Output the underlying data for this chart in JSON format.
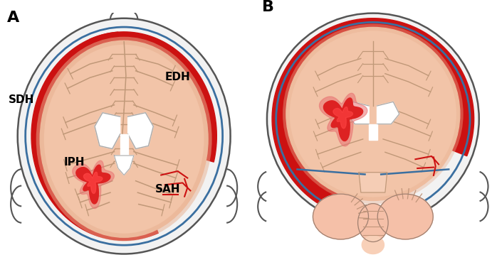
{
  "background_color": "#ffffff",
  "label_A": "A",
  "label_B": "B",
  "label_SDH": "SDH",
  "label_EDH": "EDH",
  "label_IPH": "IPH",
  "label_SAH": "SAH",
  "skull_color": "#f2f2f2",
  "skull_edge_color": "#555555",
  "dura_color": "#3a6fa0",
  "brain_color": "#f2c4a8",
  "brain_color2": "#e8b090",
  "sdh_color": "#cc1111",
  "edh_color": "#cc1111",
  "iph_color": "#cc1111",
  "iph_inner_color": "#ee3333",
  "sah_color": "#cc1111",
  "ventricle_color": "#ffffff",
  "ventricle_edge": "#aaaaaa",
  "sulci_color": "#c09878",
  "cerebellum_color": "#f0b8a8",
  "font_size_label": 11,
  "font_size_letter": 14,
  "figsize": [
    6.98,
    3.83
  ],
  "dpi": 100
}
